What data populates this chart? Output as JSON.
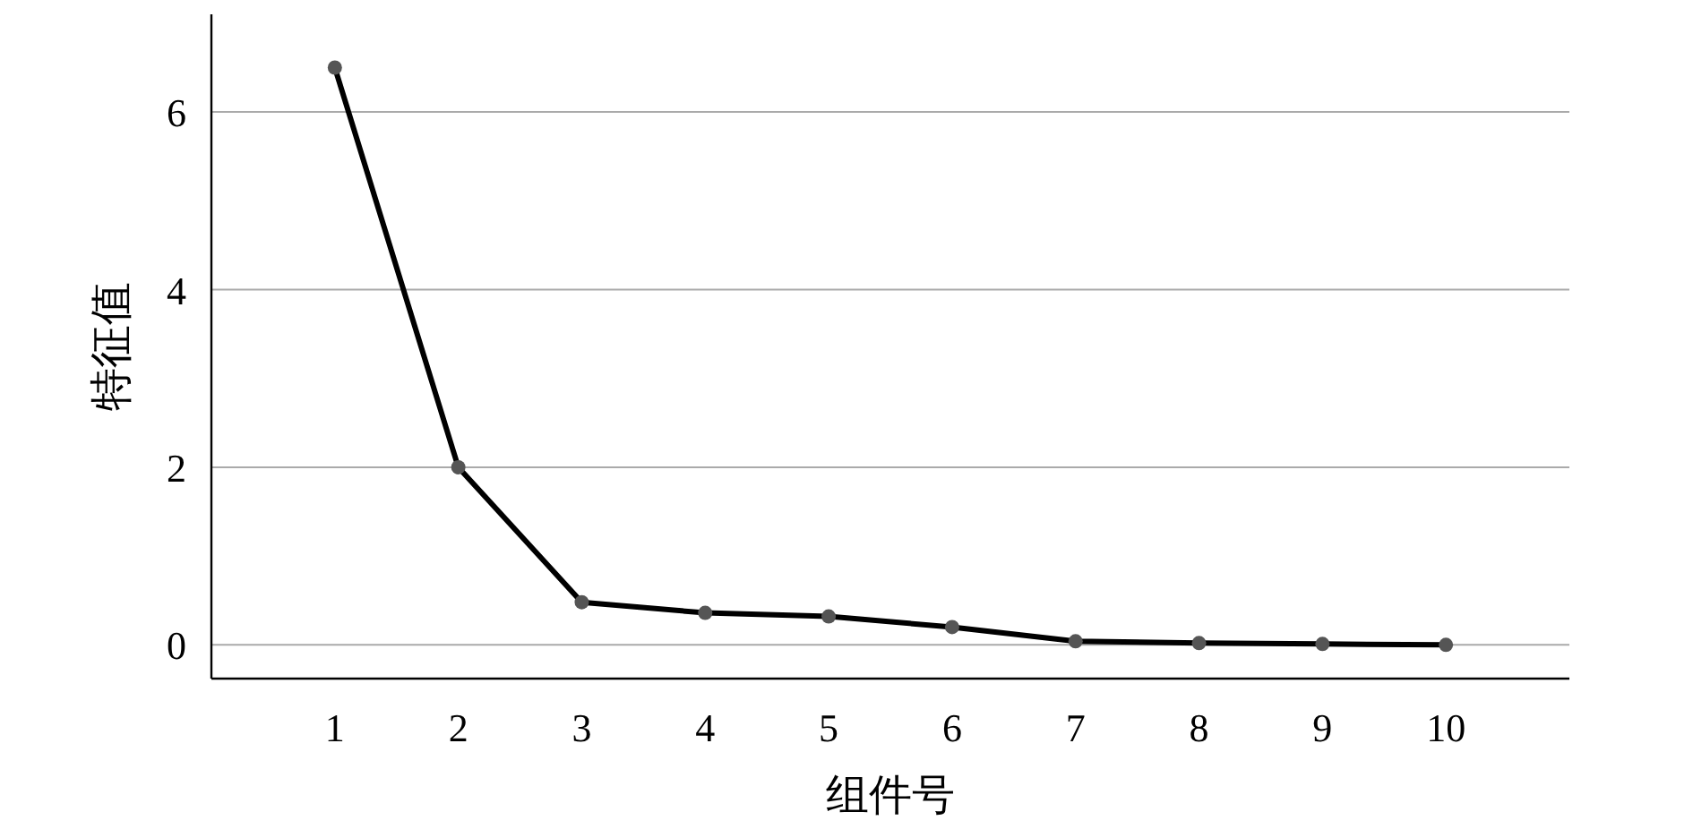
{
  "chart_data": {
    "type": "line",
    "xlabel": "组件号",
    "ylabel": "特征值",
    "x": [
      1,
      2,
      3,
      4,
      5,
      6,
      7,
      8,
      9,
      10
    ],
    "series": [
      {
        "color": "#000000",
        "values": [
          6.5,
          2.0,
          0.48,
          0.36,
          0.32,
          0.2,
          0.04,
          0.02,
          0.01,
          0.0
        ]
      }
    ],
    "xlim": [
      0,
      11
    ],
    "xticks": [
      1,
      2,
      3,
      4,
      5,
      6,
      7,
      8,
      9,
      10
    ],
    "ylim": [
      -0.38,
      7.1
    ],
    "yticks": [
      0,
      2,
      4,
      6
    ],
    "grid": "y",
    "marker": "circle",
    "line_style": "solid"
  }
}
